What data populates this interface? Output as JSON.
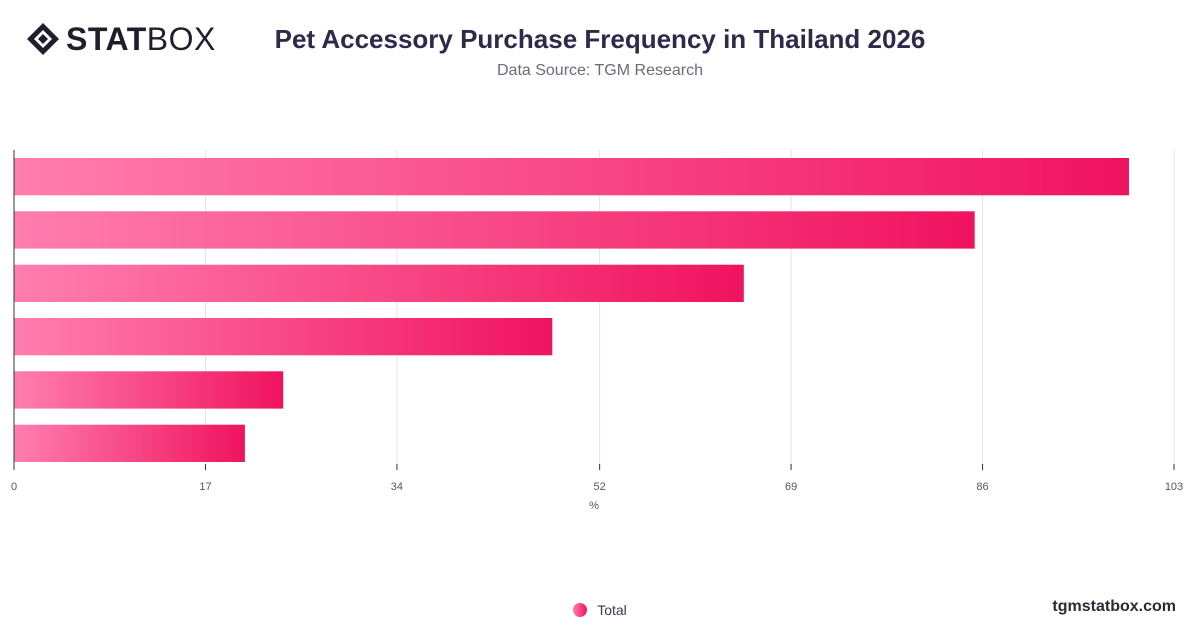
{
  "brand": {
    "logo_bold": "STAT",
    "logo_light": "BOX",
    "watermark": "tgmstatbox.com"
  },
  "header": {
    "title": "Pet Accessory Purchase Frequency in Thailand 2026",
    "subtitle": "Data Source: TGM Research"
  },
  "chart_data": {
    "type": "bar",
    "orientation": "horizontal",
    "categories": [
      "",
      "",
      "",
      "",
      "",
      ""
    ],
    "series": [
      {
        "name": "Total",
        "values": [
          99,
          85.3,
          64.8,
          47.8,
          23.9,
          20.5
        ]
      }
    ],
    "xlabel": "%",
    "ylabel": "",
    "xlim": [
      0,
      103
    ],
    "xticks": [
      0,
      17,
      34,
      52,
      69,
      86,
      103
    ],
    "grid": true,
    "legend": "bottom-center",
    "colors": {
      "bar_start": "#ff7eae",
      "bar_end": "#f0135f"
    }
  }
}
